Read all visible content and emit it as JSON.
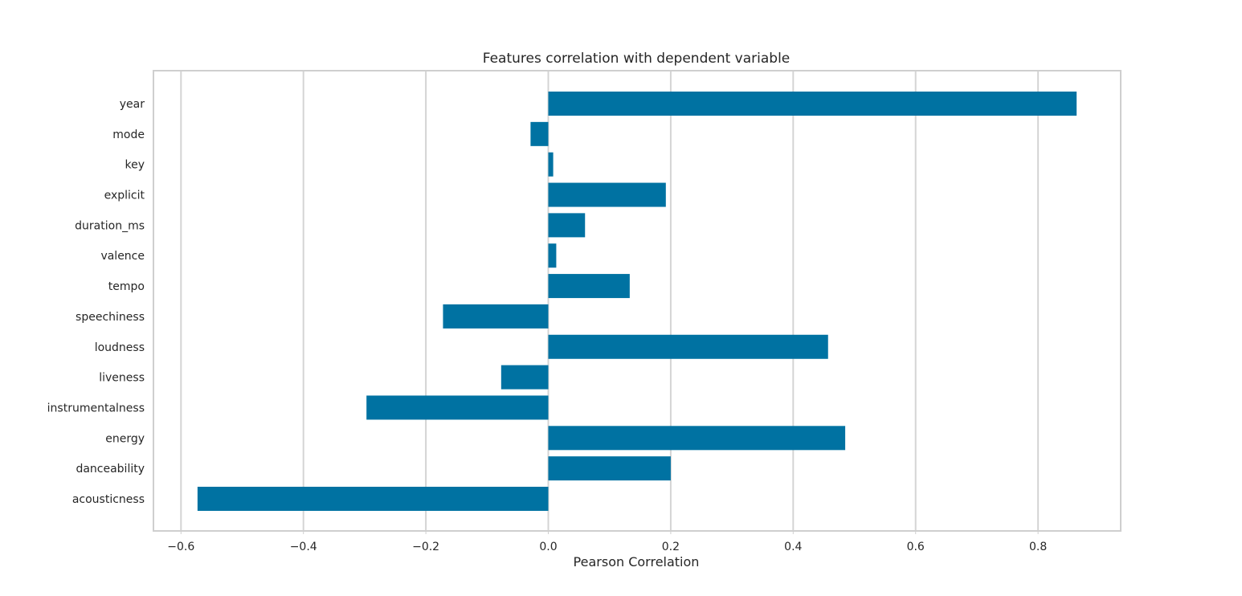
{
  "chart_data": {
    "type": "bar",
    "orientation": "horizontal",
    "title": "Features correlation with dependent variable",
    "xlabel": "Pearson Correlation",
    "ylabel": "",
    "categories": [
      "acousticness",
      "danceability",
      "energy",
      "instrumentalness",
      "liveness",
      "loudness",
      "speechiness",
      "tempo",
      "valence",
      "duration_ms",
      "explicit",
      "key",
      "mode",
      "year"
    ],
    "values": [
      -0.573,
      0.2,
      0.485,
      -0.297,
      -0.077,
      0.457,
      -0.172,
      0.133,
      0.013,
      0.06,
      0.192,
      0.008,
      -0.029,
      0.863
    ],
    "xlim": [
      -0.645,
      0.935
    ],
    "xticks": [
      -0.6,
      -0.4,
      -0.2,
      0.0,
      0.2,
      0.4,
      0.6,
      0.8
    ],
    "xtick_labels": [
      "−0.6",
      "−0.4",
      "−0.2",
      "0.0",
      "0.2",
      "0.4",
      "0.6",
      "0.8"
    ],
    "grid": true,
    "bar_color": "#0072a2",
    "grid_color": "#d4d4d4",
    "frame_color": "#cfcfcf",
    "text_color": "#262626"
  }
}
